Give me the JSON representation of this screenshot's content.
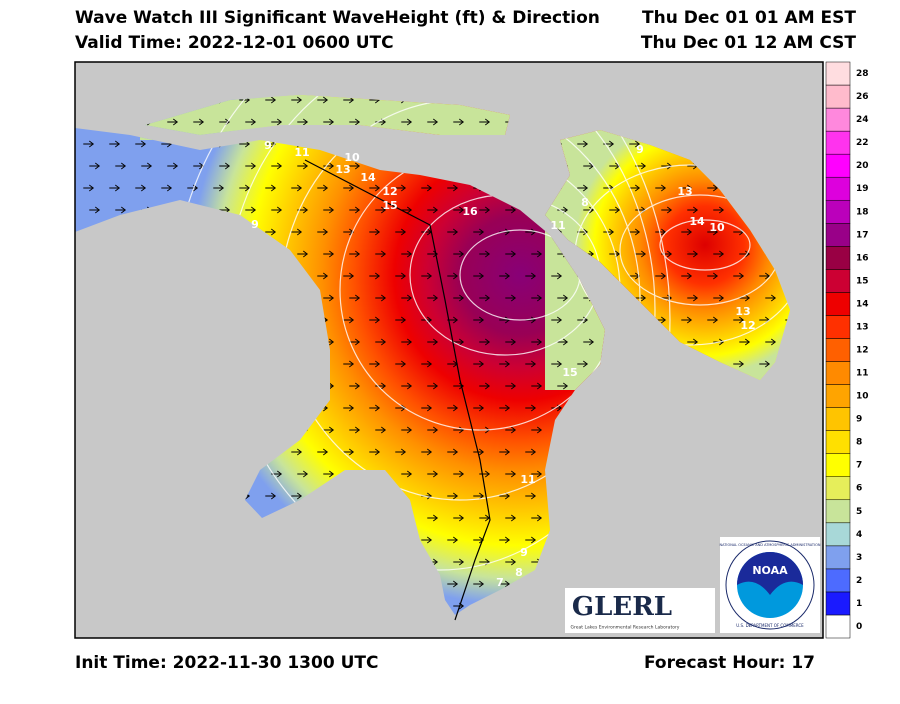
{
  "header": {
    "title": "Wave Watch III Significant WaveHeight (ft) & Direction",
    "valid_time": "Valid Time: 2022-12-01 0600 UTC",
    "time_est": "Thu Dec 01 01 AM EST",
    "time_cst": "Thu Dec 01 12 AM CST"
  },
  "footer": {
    "init_time": "Init Time: 2022-11-30 1300 UTC",
    "forecast_hour": "Forecast Hour: 17"
  },
  "colorbar": [
    {
      "label": "0",
      "color": "#ffffff"
    },
    {
      "label": "1",
      "color": "#1a1aff"
    },
    {
      "label": "2",
      "color": "#4d6bff"
    },
    {
      "label": "3",
      "color": "#7fa0ee"
    },
    {
      "label": "4",
      "color": "#a8d8d8"
    },
    {
      "label": "5",
      "color": "#c8e49a"
    },
    {
      "label": "6",
      "color": "#e6ee5a"
    },
    {
      "label": "7",
      "color": "#ffff00"
    },
    {
      "label": "8",
      "color": "#ffe000"
    },
    {
      "label": "9",
      "color": "#ffc400"
    },
    {
      "label": "10",
      "color": "#ffa400"
    },
    {
      "label": "11",
      "color": "#ff8a00"
    },
    {
      "label": "12",
      "color": "#ff6000"
    },
    {
      "label": "13",
      "color": "#ff3000"
    },
    {
      "label": "14",
      "color": "#ee0000"
    },
    {
      "label": "15",
      "color": "#cc0033"
    },
    {
      "label": "16",
      "color": "#990044"
    },
    {
      "label": "17",
      "color": "#990088"
    },
    {
      "label": "18",
      "color": "#bb00bb"
    },
    {
      "label": "19",
      "color": "#dd00dd"
    },
    {
      "label": "20",
      "color": "#ff00ff"
    },
    {
      "label": "22",
      "color": "#ff33ee"
    },
    {
      "label": "24",
      "color": "#ff88dd"
    },
    {
      "label": "26",
      "color": "#ffbbcc"
    },
    {
      "label": "28",
      "color": "#ffdde0"
    }
  ],
  "contour_labels": [
    "9",
    "11",
    "10",
    "13",
    "14",
    "12",
    "15",
    "16",
    "11",
    "9",
    "15",
    "11",
    "9",
    "8",
    "7",
    "8",
    "9",
    "13",
    "14",
    "10",
    "13",
    "12"
  ],
  "logos": {
    "glerl": "GLERL",
    "glerl_sub": "Great Lakes Environmental Research Laboratory",
    "noaa": "NOAA",
    "noaa_ring_top": "NATIONAL OCEANIC AND ATMOSPHERIC ADMINISTRATION",
    "noaa_ring_bottom": "U.S. DEPARTMENT OF COMMERCE"
  }
}
